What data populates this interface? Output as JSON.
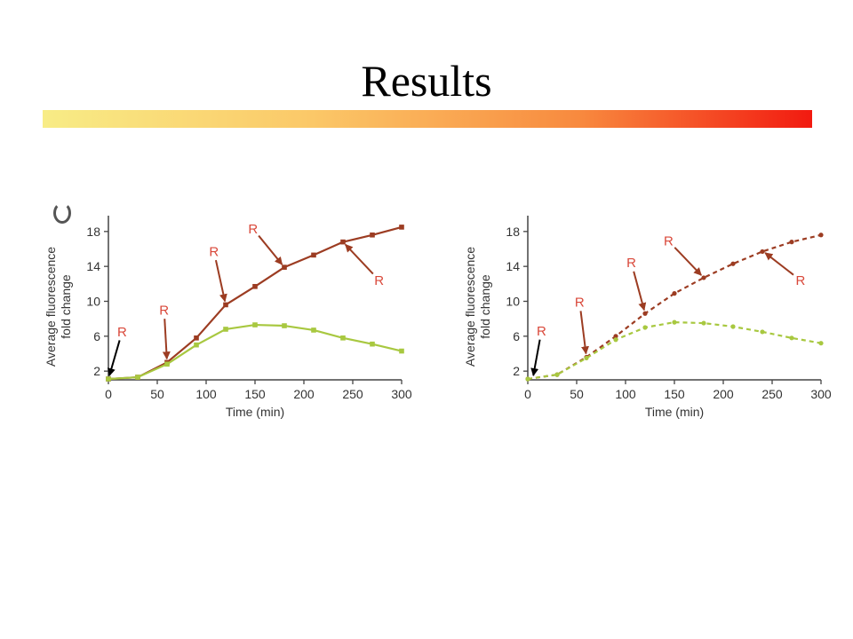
{
  "slide": {
    "title": "Results",
    "accent_gradient": [
      "#f8ec86",
      "#fbc868",
      "#f8893e",
      "#f21a10"
    ]
  },
  "chart_data": [
    {
      "type": "line",
      "xlabel": "Time (min)",
      "ylabel": [
        "Average fluorescence",
        "fold change"
      ],
      "xlim": [
        0,
        300
      ],
      "ylim": [
        1,
        19
      ],
      "xticks": [
        0,
        50,
        100,
        150,
        200,
        250,
        300
      ],
      "yticks": [
        2,
        6,
        10,
        14,
        18
      ],
      "grid": false,
      "line_style": "solid",
      "series": [
        {
          "color": "#9c3c22",
          "x": [
            0,
            30,
            60,
            90,
            120,
            150,
            180,
            210,
            240,
            270,
            300
          ],
          "values": [
            1.1,
            1.3,
            3.0,
            5.8,
            9.6,
            11.7,
            13.9,
            15.3,
            16.8,
            17.6,
            18.5
          ]
        },
        {
          "color": "#a8c840",
          "x": [
            0,
            30,
            60,
            90,
            120,
            150,
            180,
            210,
            240,
            270,
            300
          ],
          "values": [
            1.1,
            1.3,
            2.8,
            5.0,
            6.8,
            7.3,
            7.2,
            6.7,
            5.8,
            5.1,
            4.3
          ]
        }
      ],
      "annotations": [
        {
          "text": "R",
          "color": "#000000",
          "x": 0,
          "y": 1.1,
          "label_pos": [
            14,
            6.0
          ]
        },
        {
          "text": "R",
          "color": "#9c3c22",
          "x": 60,
          "y": 3.0,
          "label_pos": [
            57,
            8.5
          ]
        },
        {
          "text": "R",
          "color": "#9c3c22",
          "x": 120,
          "y": 9.6,
          "label_pos": [
            108,
            15.2
          ]
        },
        {
          "text": "R",
          "color": "#9c3c22",
          "x": 180,
          "y": 13.9,
          "label_pos": [
            148,
            17.8
          ]
        },
        {
          "text": "R",
          "color": "#9c3c22",
          "x": 240,
          "y": 16.8,
          "label_pos": [
            277,
            11.9
          ]
        }
      ]
    },
    {
      "type": "line",
      "xlabel": "Time (min)",
      "ylabel": [
        "Average fluorescence",
        "fold change"
      ],
      "xlim": [
        0,
        300
      ],
      "ylim": [
        1,
        19
      ],
      "xticks": [
        0,
        50,
        100,
        150,
        200,
        250,
        300
      ],
      "yticks": [
        2,
        6,
        10,
        14,
        18
      ],
      "grid": false,
      "line_style": "dashed",
      "series": [
        {
          "color": "#9c3c22",
          "x": [
            0,
            30,
            60,
            90,
            120,
            150,
            180,
            210,
            240,
            270,
            300
          ],
          "values": [
            1.1,
            1.6,
            3.6,
            6.0,
            8.6,
            10.9,
            12.7,
            14.3,
            15.7,
            16.8,
            17.6
          ]
        },
        {
          "color": "#a8c840",
          "x": [
            0,
            30,
            60,
            90,
            120,
            150,
            180,
            210,
            240,
            270,
            300
          ],
          "values": [
            1.1,
            1.6,
            3.5,
            5.6,
            7.0,
            7.6,
            7.5,
            7.1,
            6.5,
            5.8,
            5.2
          ]
        }
      ],
      "annotations": [
        {
          "text": "R",
          "color": "#000000",
          "x": 5,
          "y": 1.1,
          "label_pos": [
            14,
            6.1
          ]
        },
        {
          "text": "R",
          "color": "#9c3c22",
          "x": 60,
          "y": 3.6,
          "label_pos": [
            53,
            9.4
          ]
        },
        {
          "text": "R",
          "color": "#9c3c22",
          "x": 120,
          "y": 8.6,
          "label_pos": [
            106,
            13.9
          ]
        },
        {
          "text": "R",
          "color": "#9c3c22",
          "x": 180,
          "y": 12.7,
          "label_pos": [
            144,
            16.4
          ]
        },
        {
          "text": "R",
          "color": "#9c3c22",
          "x": 240,
          "y": 15.8,
          "label_pos": [
            279,
            11.9
          ]
        }
      ]
    }
  ]
}
